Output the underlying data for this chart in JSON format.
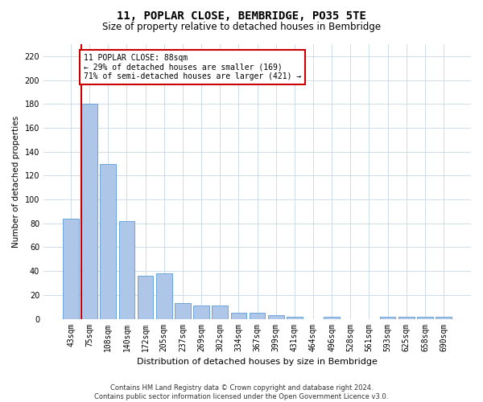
{
  "title": "11, POPLAR CLOSE, BEMBRIDGE, PO35 5TE",
  "subtitle": "Size of property relative to detached houses in Bembridge",
  "xlabel": "Distribution of detached houses by size in Bembridge",
  "ylabel": "Number of detached properties",
  "categories": [
    "43sqm",
    "75sqm",
    "108sqm",
    "140sqm",
    "172sqm",
    "205sqm",
    "237sqm",
    "269sqm",
    "302sqm",
    "334sqm",
    "367sqm",
    "399sqm",
    "431sqm",
    "464sqm",
    "496sqm",
    "528sqm",
    "561sqm",
    "593sqm",
    "625sqm",
    "658sqm",
    "690sqm"
  ],
  "values": [
    84,
    180,
    130,
    82,
    36,
    38,
    13,
    11,
    11,
    5,
    5,
    3,
    2,
    0,
    2,
    0,
    0,
    2,
    2,
    2,
    2
  ],
  "bar_color": "#aec6e8",
  "bar_edge_color": "#5b9bd5",
  "ylim": [
    0,
    230
  ],
  "yticks": [
    0,
    20,
    40,
    60,
    80,
    100,
    120,
    140,
    160,
    180,
    200,
    220
  ],
  "property_line_color": "#cc0000",
  "annotation_text": "11 POPLAR CLOSE: 88sqm\n← 29% of detached houses are smaller (169)\n71% of semi-detached houses are larger (421) →",
  "annotation_box_color": "#cc0000",
  "footer_line1": "Contains HM Land Registry data © Crown copyright and database right 2024.",
  "footer_line2": "Contains public sector information licensed under the Open Government Licence v3.0.",
  "background_color": "#ffffff",
  "grid_color": "#c8d8e8",
  "title_fontsize": 10,
  "subtitle_fontsize": 8.5,
  "xlabel_fontsize": 8,
  "ylabel_fontsize": 7.5,
  "tick_fontsize": 7,
  "annotation_fontsize": 7,
  "footer_fontsize": 6
}
